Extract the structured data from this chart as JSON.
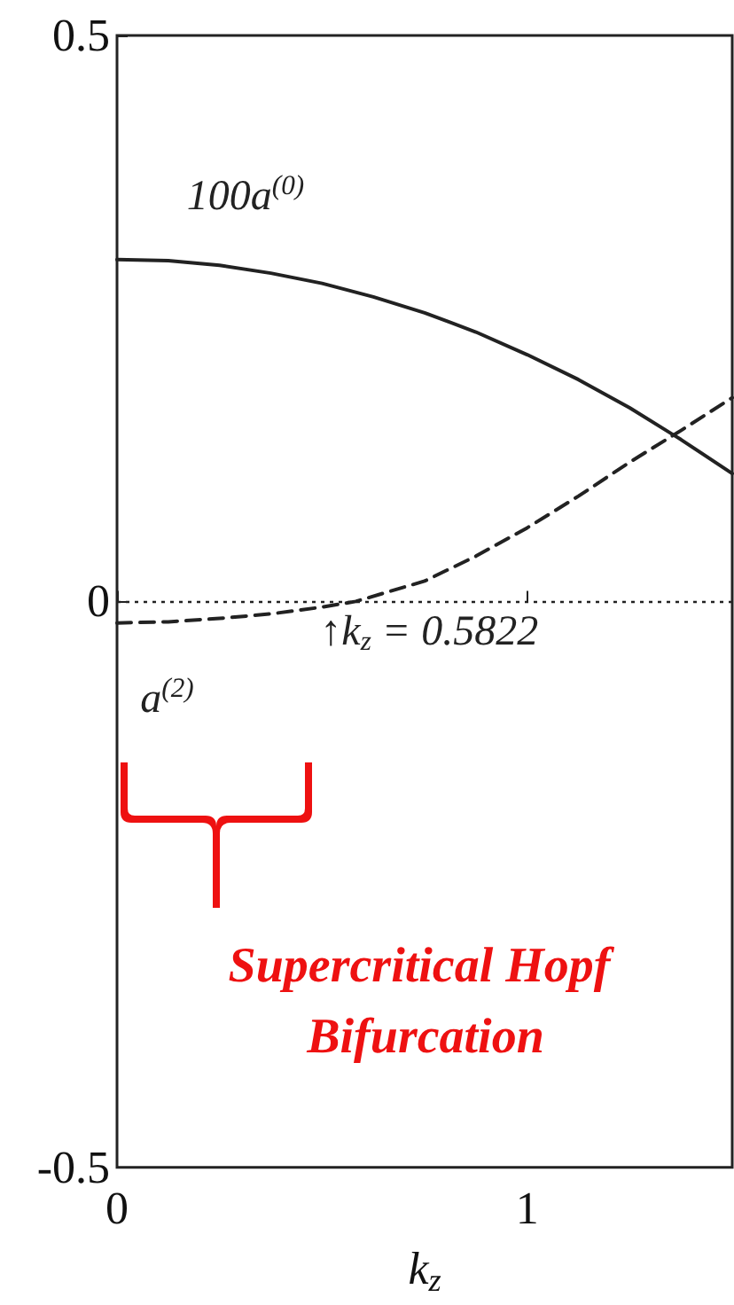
{
  "chart_data": {
    "type": "line",
    "xlabel": "k$_{z}$",
    "xlim": [
      0,
      1.5
    ],
    "xticks": [
      0,
      1
    ],
    "ylim": [
      -0.5,
      0.5
    ],
    "yticks": [
      0.5,
      0,
      -0.5
    ],
    "grid": false,
    "marker": "none",
    "series": [
      {
        "color": "#222222",
        "line_style": "solid",
        "x": [
          0,
          0.125,
          0.25,
          0.375,
          0.5,
          0.625,
          0.75,
          0.875,
          1,
          1.125,
          1.25,
          1.375,
          1.5
        ],
        "values": [
          0.302,
          0.301,
          0.297,
          0.29,
          0.281,
          0.269,
          0.255,
          0.238,
          0.218,
          0.196,
          0.171,
          0.143,
          0.113
        ]
      },
      {
        "color": "#222222",
        "line_style": "dashed",
        "x": [
          0,
          0.125,
          0.25,
          0.375,
          0.5,
          0.5822,
          0.75,
          0.875,
          1,
          1.125,
          1.25,
          1.375,
          1.5
        ],
        "values": [
          -0.019,
          -0.018,
          -0.015,
          -0.011,
          -0.005,
          0,
          0.018,
          0.04,
          0.065,
          0.093,
          0.123,
          0.151,
          0.18
        ]
      }
    ],
    "ref_lines": [
      {
        "axis": "y",
        "value": 0,
        "line_style": "dotted",
        "color": "#222222"
      }
    ],
    "annotations": [
      {
        "text": "100a$^{(0)}$",
        "x": 0.3,
        "y": 0.293
      },
      {
        "text": "a$^{(2)}$",
        "x": 0.1,
        "y": -0.018
      },
      {
        "text": "↑k$_{z}$ = 0.5822",
        "x": 0.5822,
        "y": 0
      },
      "Supercritical Hopf Bifurcation"
    ]
  }
}
